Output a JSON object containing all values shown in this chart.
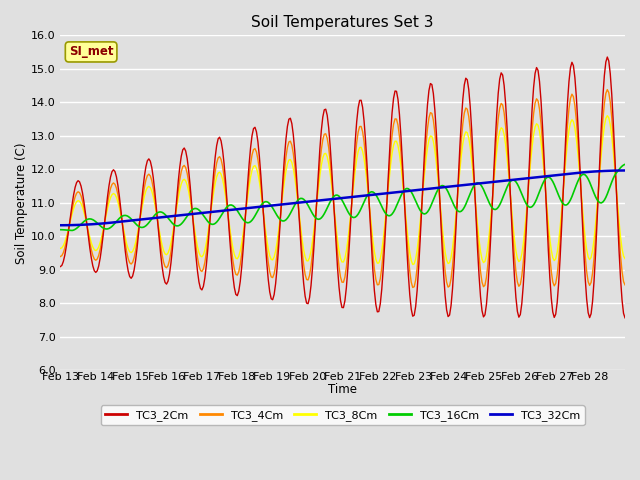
{
  "title": "Soil Temperatures Set 3",
  "xlabel": "Time",
  "ylabel": "Soil Temperature (C)",
  "ylim": [
    6.0,
    16.0
  ],
  "yticks": [
    6.0,
    7.0,
    8.0,
    9.0,
    10.0,
    11.0,
    12.0,
    13.0,
    14.0,
    15.0,
    16.0
  ],
  "xtick_labels": [
    "Feb 13",
    "Feb 14",
    "Feb 15",
    "Feb 16",
    "Feb 17",
    "Feb 18",
    "Feb 19",
    "Feb 20",
    "Feb 21",
    "Feb 22",
    "Feb 23",
    "Feb 24",
    "Feb 25",
    "Feb 26",
    "Feb 27",
    "Feb 28"
  ],
  "background_color": "#e0e0e0",
  "plot_bg_color": "#e0e0e0",
  "grid_color": "#ffffff",
  "colors": {
    "TC3_2Cm": "#cc0000",
    "TC3_4Cm": "#ff8800",
    "TC3_8Cm": "#ffff00",
    "TC3_16Cm": "#00cc00",
    "TC3_32Cm": "#0000cc"
  },
  "legend_label": "SI_met",
  "legend_bg": "#ffff99",
  "legend_border": "#999900"
}
